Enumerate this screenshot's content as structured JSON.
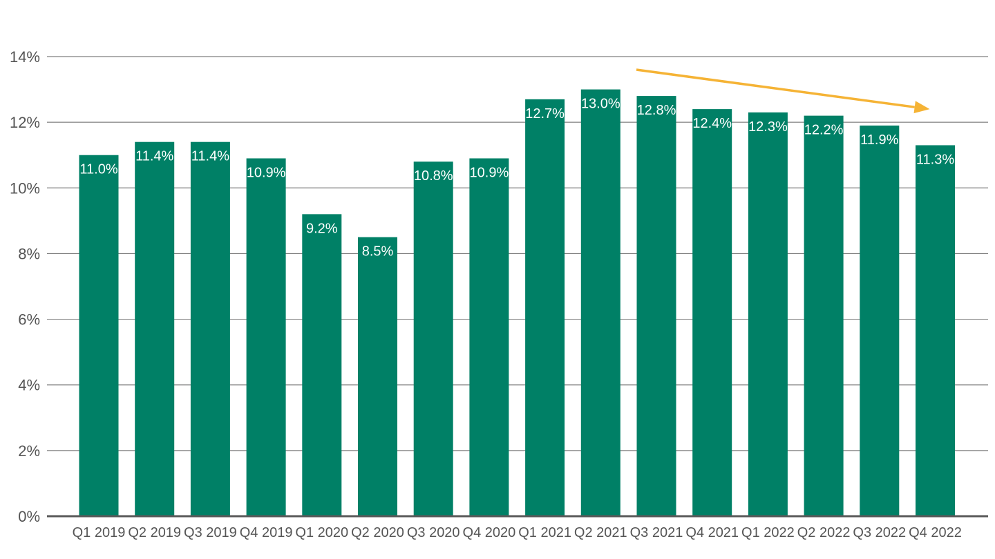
{
  "chart_data": {
    "type": "bar",
    "title": "",
    "xlabel": "",
    "ylabel": "",
    "categories": [
      "Q1 2019",
      "Q2 2019",
      "Q3 2019",
      "Q4 2019",
      "Q1 2020",
      "Q2 2020",
      "Q3 2020",
      "Q4 2020",
      "Q1 2021",
      "Q2 2021",
      "Q3 2021",
      "Q4 2021",
      "Q1 2022",
      "Q2 2022",
      "Q3 2022",
      "Q4 2022"
    ],
    "values": [
      11.0,
      11.4,
      11.4,
      10.9,
      9.2,
      8.5,
      10.8,
      10.9,
      12.7,
      13.0,
      12.8,
      12.4,
      12.3,
      12.2,
      11.9,
      11.3
    ],
    "data_labels": [
      "11.0%",
      "11.4%",
      "11.4%",
      "10.9%",
      "9.2%",
      "8.5%",
      "10.8%",
      "10.9%",
      "12.7%",
      "13.0%",
      "12.8%",
      "12.4%",
      "12.3%",
      "12.2%",
      "11.9%",
      "11.3%"
    ],
    "ylim": [
      0,
      14
    ],
    "yticks": [
      0,
      2,
      4,
      6,
      8,
      10,
      12,
      14
    ],
    "ytick_labels": [
      "0%",
      "2%",
      "4%",
      "6%",
      "8%",
      "10%",
      "12%",
      "14%"
    ],
    "grid": true,
    "legend": "none",
    "colors": {
      "bar": "#008066",
      "arrow": "#f5b335",
      "grid": "#7f7f7f",
      "axis_text": "#555555"
    },
    "annotation": {
      "type": "trend-arrow",
      "from_category": "Q3 2021",
      "to_category": "Q4 2022",
      "from_value": 13.6,
      "to_value": 12.4
    }
  }
}
